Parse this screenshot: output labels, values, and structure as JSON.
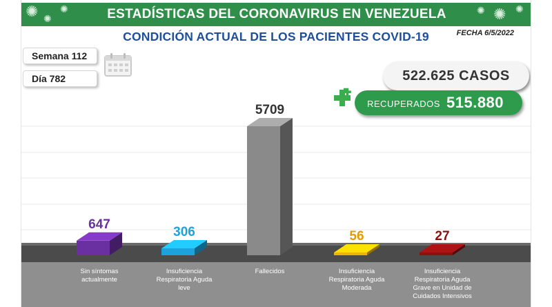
{
  "header": {
    "title": "ESTADÍSTICAS DEL CORONAVIRUS EN VENEZUELA",
    "subtitle": "CONDICIÓN ACTUAL DE LOS PACIENTES COVID-19",
    "date": "FECHA 6/5/2022"
  },
  "period": {
    "week": "Semana 112",
    "day": "Día 782"
  },
  "totals": {
    "cases": "522.625 CASOS",
    "recovered_label": "RECUPERADOS",
    "recovered_value": "515.880"
  },
  "icons": {
    "header": "coronavirus-icon",
    "calendar": "calendar-icon",
    "plus": "plus-icon"
  },
  "colors": {
    "banner": "#2f8f4a",
    "subtitle": "#1f4e9c",
    "recovered": "#2e9b4c",
    "floor": "#5a5a5a",
    "sin_sintomas": "#6a2fa0",
    "leve": "#1ca3dc",
    "fallecidos": "#8a8a8a",
    "moderada": "#f0b400",
    "grave": "#8c1010"
  },
  "chart_data": {
    "type": "bar",
    "categories": [
      "Sin síntomas actualmente",
      "Insuficiencia Respiratoria Aguda leve",
      "Fallecidos",
      "Insuficiencia Respiratoria Aguda Moderada",
      "Insuficiencia Respiratoria Aguda Grave en Unidad de Cuidados Intensivos"
    ],
    "category_lines": [
      [
        "Sin síntomas",
        "actualmente"
      ],
      [
        "Insuficiencia",
        "Respiratoria Aguda",
        "leve"
      ],
      [
        "Fallecidos"
      ],
      [
        "Insuficiencia",
        "Respiratoria Aguda",
        "Moderada"
      ],
      [
        "Insuficiencia",
        "Respiratoria Aguda",
        "Grave en Unidad de",
        "Cuidados Intensivos"
      ]
    ],
    "values": [
      647,
      306,
      5709,
      56,
      27
    ],
    "value_labels": [
      "647",
      "306",
      "5709",
      "56",
      "27"
    ],
    "value_label_colors": [
      "#6a2fa0",
      "#1ca3dc",
      "#333333",
      "#e39b00",
      "#8c1010"
    ],
    "bar_colors": [
      "#6a2fa0",
      "#1ca3dc",
      "#8a8a8a",
      "#f0b400",
      "#8c1010"
    ],
    "title": "",
    "xlabel": "",
    "ylabel": "",
    "grid": true,
    "legend": "none"
  }
}
